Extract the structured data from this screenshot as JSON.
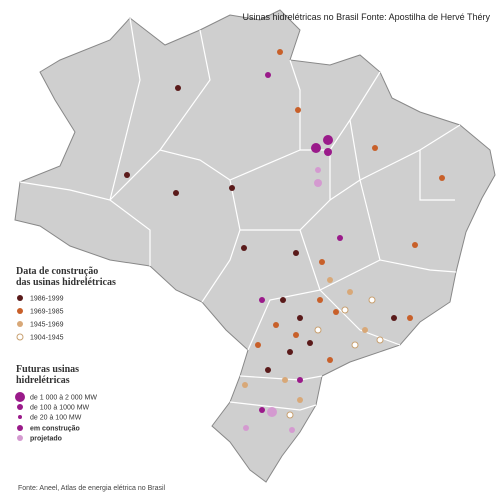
{
  "header": {
    "title": "Usinas hidrelétricas no Brasil Fonte: Apostilha de Hervé Théry"
  },
  "legend": {
    "construction_title": "Data de construção das usinas hidrelétricas",
    "construction_items": [
      "1986-1999",
      "1969-1985",
      "1945-1969",
      "1904-1945"
    ],
    "future_title": "Futuras usinas hidrelétricas",
    "size_items": [
      "de 1 000 à 2 000 MW",
      "de 100 à 1000 MW",
      "de 20 à 100 MW"
    ],
    "status_items": [
      "em construção",
      "projetado"
    ]
  },
  "footer": {
    "source": "Fonte: Aneel, Atlas de energia elétrica no Brasil"
  }
}
